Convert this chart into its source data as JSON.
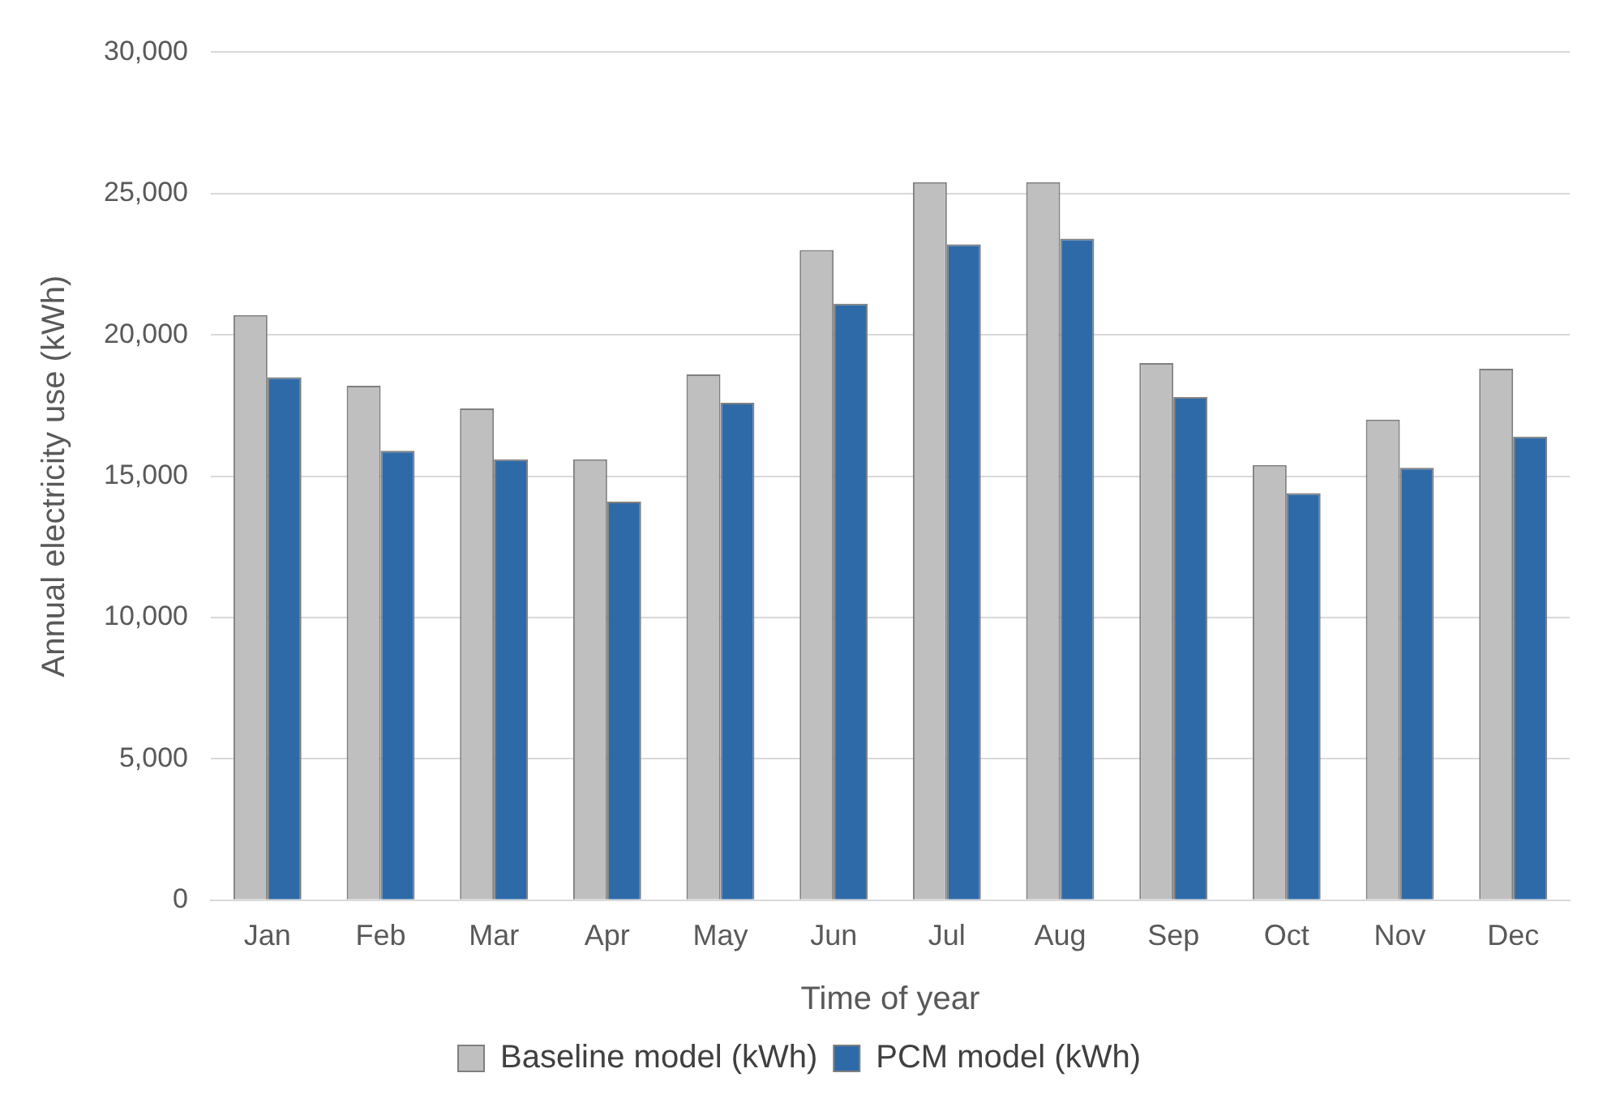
{
  "chart_data": {
    "type": "bar",
    "xlabel": "Time of year",
    "ylabel": "Annual electricity use (kWh)",
    "categories": [
      "Jan",
      "Feb",
      "Mar",
      "Apr",
      "May",
      "Jun",
      "Jul",
      "Aug",
      "Sep",
      "Oct",
      "Nov",
      "Dec"
    ],
    "series": [
      {
        "name": "Baseline model (kWh)",
        "color": "#bfbfbf",
        "values": [
          20700,
          18200,
          17400,
          15600,
          18600,
          23000,
          25400,
          25400,
          19000,
          15400,
          17000,
          18800
        ]
      },
      {
        "name": "PCM model (kWh)",
        "color": "#2e6aa8",
        "values": [
          18500,
          15900,
          15600,
          14100,
          17600,
          21100,
          23200,
          23400,
          17800,
          14400,
          15300,
          16400
        ]
      }
    ],
    "ylim": [
      0,
      30000
    ],
    "yticks": [
      {
        "value": 0,
        "label": "0"
      },
      {
        "value": 5000,
        "label": "5,000"
      },
      {
        "value": 10000,
        "label": "10,000"
      },
      {
        "value": 15000,
        "label": "15,000"
      },
      {
        "value": 20000,
        "label": "20,000"
      },
      {
        "value": 25000,
        "label": "25,000"
      },
      {
        "value": 30000,
        "label": "30,000"
      }
    ],
    "grid": "y",
    "legend": "bottom"
  }
}
